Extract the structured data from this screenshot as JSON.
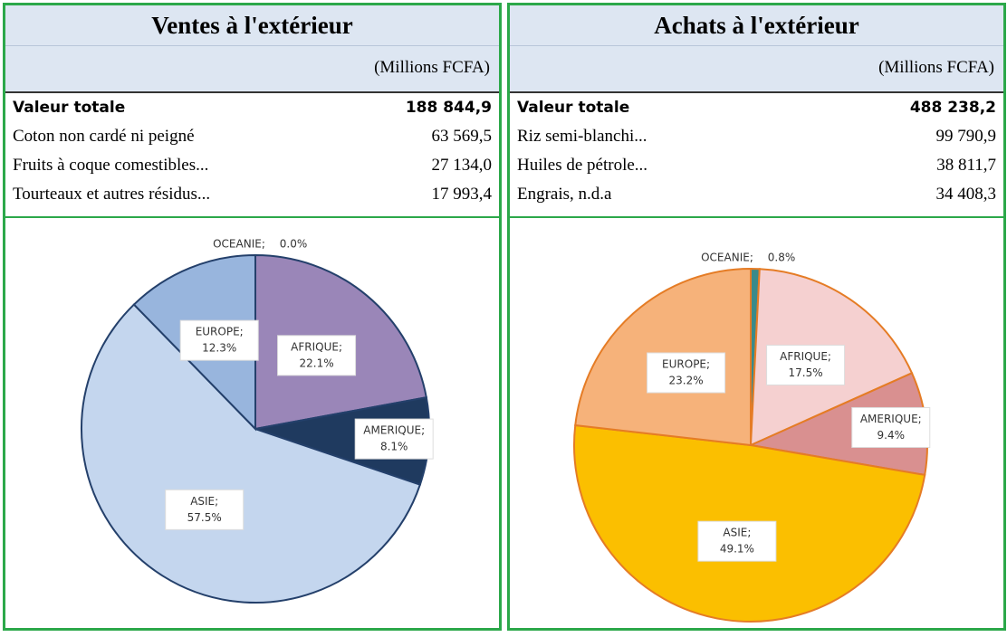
{
  "panels": [
    {
      "title": "Ventes à l'extérieur",
      "unit": "(Millions FCFA)",
      "rows": [
        [
          "Valeur totale",
          "188 844,9"
        ],
        [
          "Coton non cardé ni peigné",
          "63 569,5"
        ],
        [
          "Fruits à coque comestibles...",
          "27 134,0"
        ],
        [
          "Tourteaux et autres résidus...",
          "17 993,4"
        ]
      ]
    },
    {
      "title": "Achats à l'extérieur",
      "unit": "(Millions FCFA)",
      "rows": [
        [
          "Valeur totale",
          "488 238,2"
        ],
        [
          "Riz semi-blanchi...",
          "99 790,9"
        ],
        [
          "Huiles de pétrole...",
          "38 811,7"
        ],
        [
          "Engrais, n.d.a",
          "34 408,3"
        ]
      ]
    }
  ],
  "chart_data": [
    {
      "type": "pie",
      "categories": [
        "AFRIQUE;",
        "AMERIQUE;",
        "ASIE;",
        "EUROPE;",
        "OCEANIE;"
      ],
      "values": [
        22.1,
        8.1,
        57.5,
        12.3,
        0.0
      ],
      "value_labels": [
        "22.1%",
        "8.1%",
        "57.5%",
        "12.3%",
        "0.0%"
      ],
      "colors": [
        "#9a86b8",
        "#1f3a5f",
        "#c4d6ee",
        "#98b5dd",
        "#6a88b8"
      ],
      "stroke": "#24406b"
    },
    {
      "type": "pie",
      "categories": [
        "OCEANIE;",
        "AFRIQUE;",
        "AMERIQUE;",
        "ASIE;",
        "EUROPE;"
      ],
      "values": [
        0.8,
        17.5,
        9.4,
        49.1,
        23.2
      ],
      "value_labels": [
        "0.8%",
        "17.5%",
        "9.4%",
        "49.1%",
        "23.2%"
      ],
      "colors": [
        "#3a8a8a",
        "#f5d0d0",
        "#d99090",
        "#fbbf00",
        "#f6b27a"
      ],
      "stroke": "#e57c25"
    }
  ]
}
